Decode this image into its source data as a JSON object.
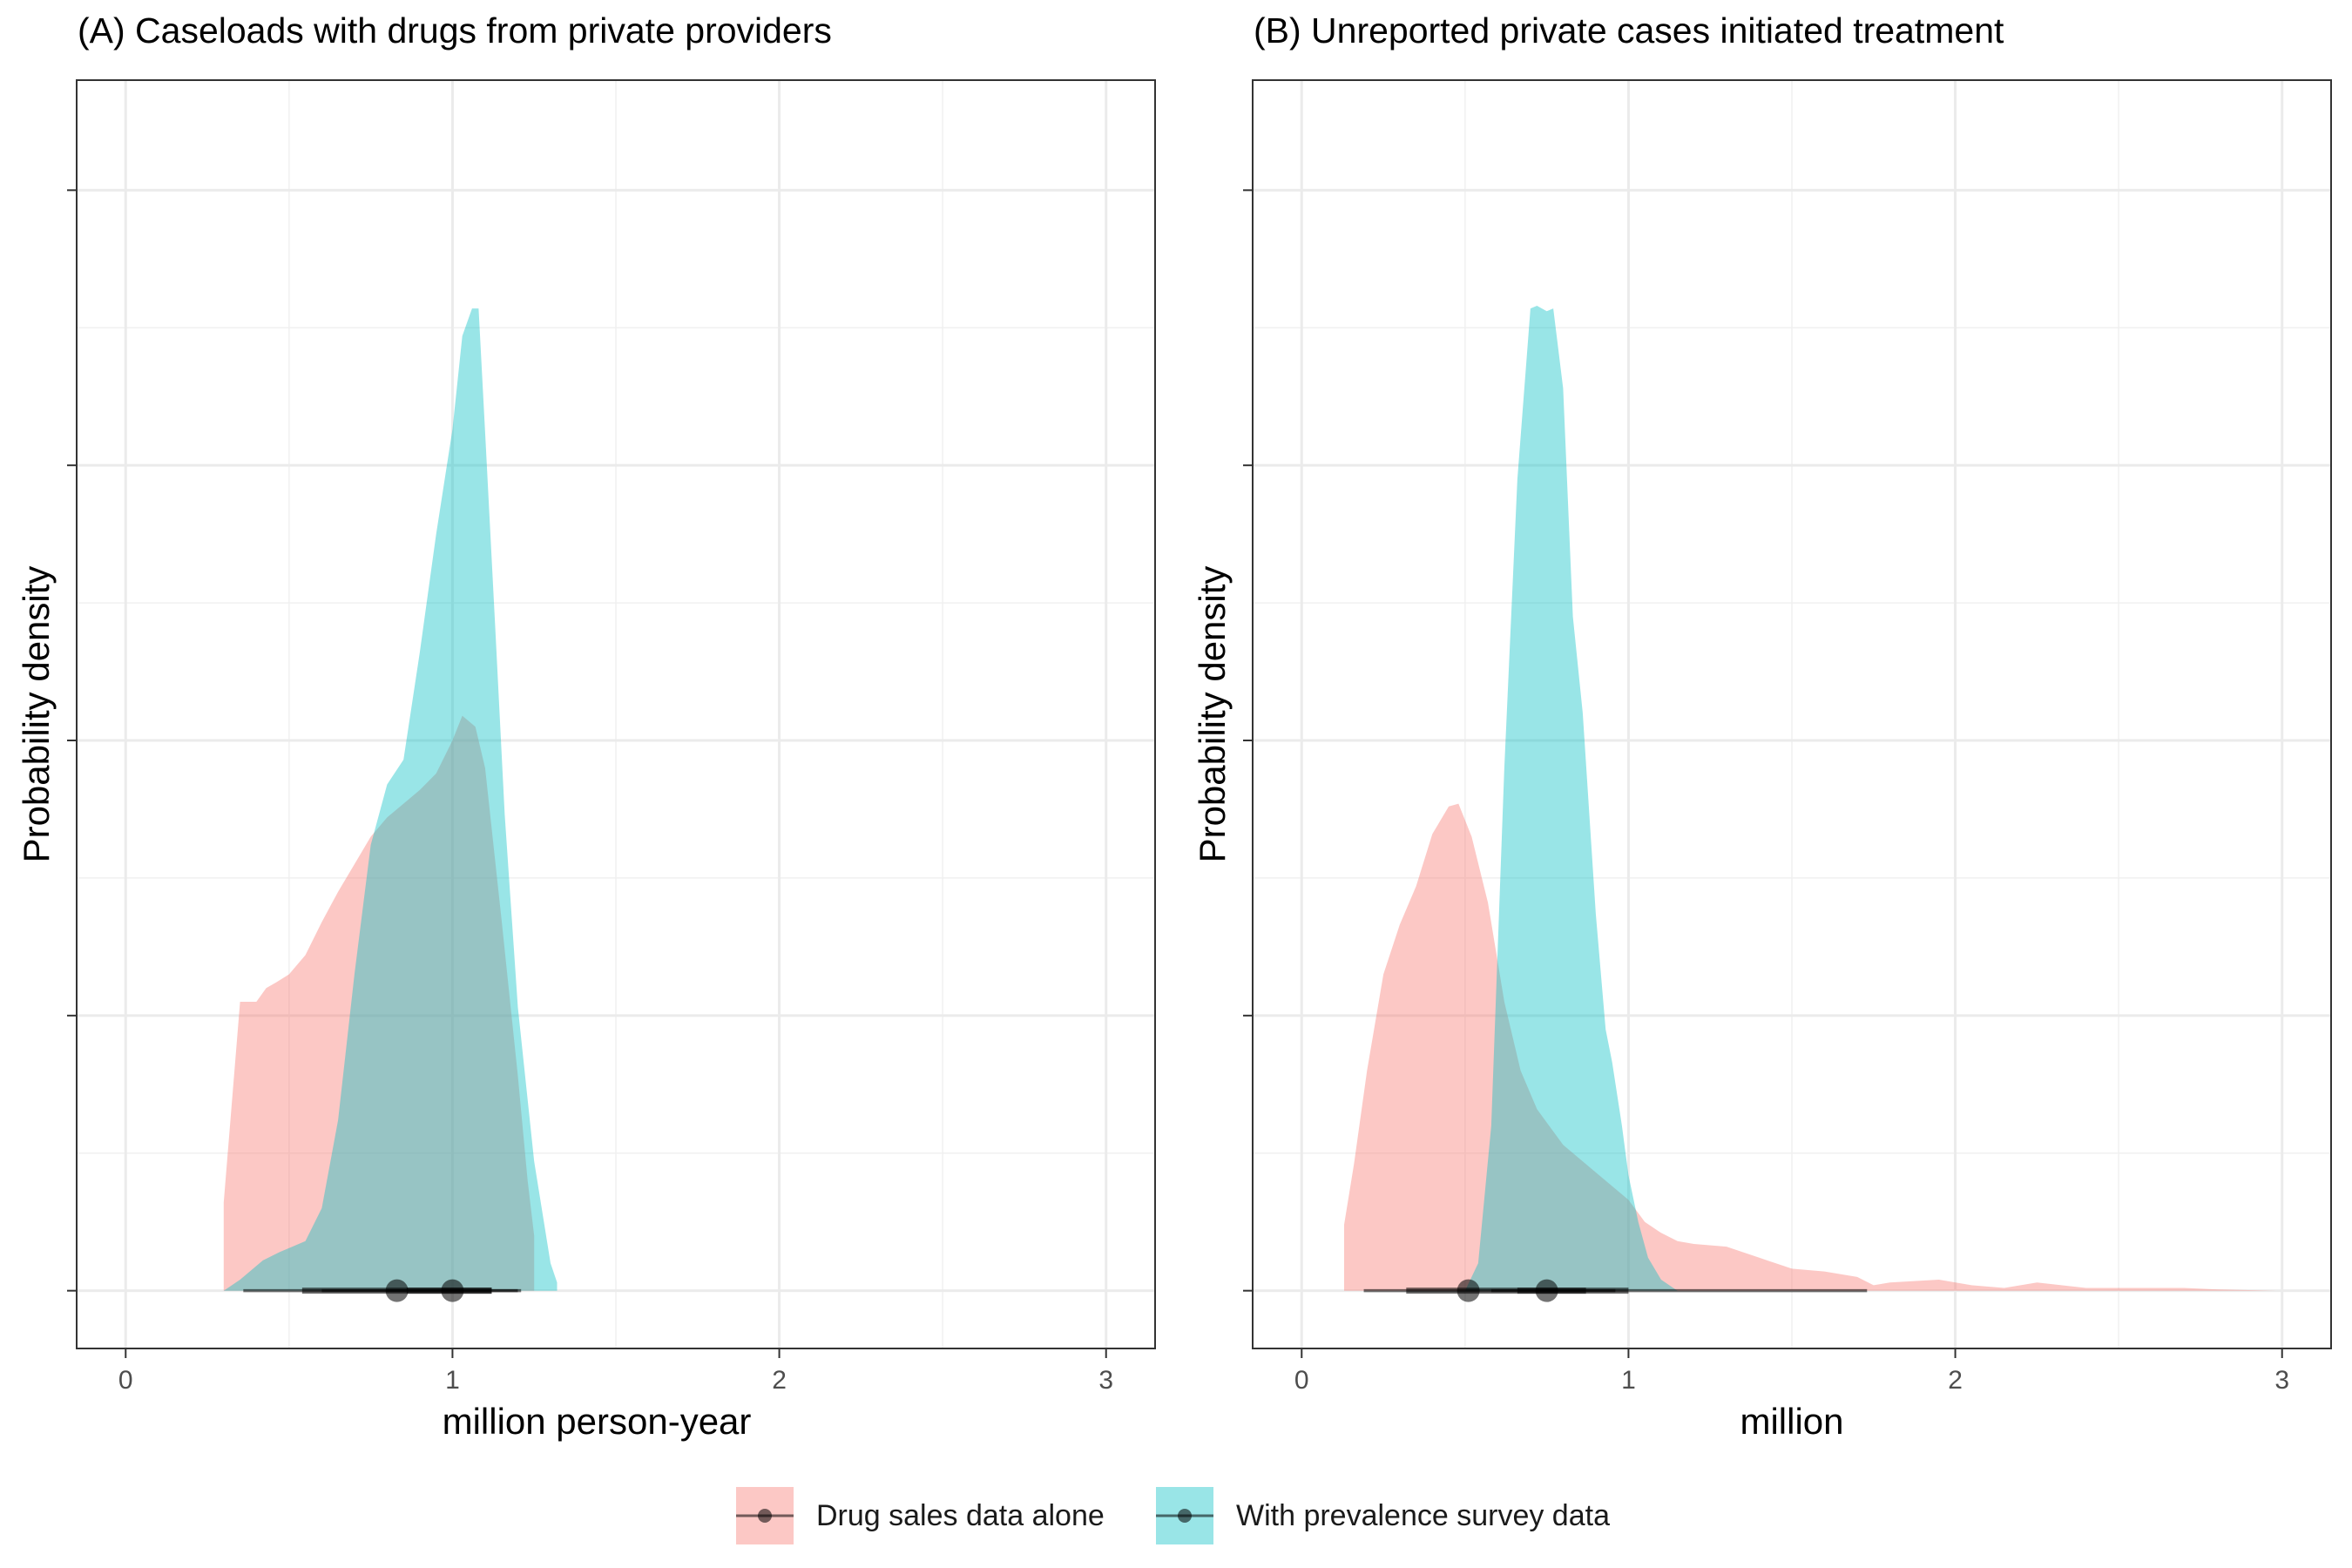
{
  "legend": {
    "items": [
      {
        "label": "Drug sales data alone",
        "color": "#F8766D"
      },
      {
        "label": "With prevalence survey data",
        "color": "#00BFC4"
      }
    ]
  },
  "chart_data": [
    {
      "type": "area",
      "panel": "A",
      "title": "(A) Caseloads with drugs from private providers",
      "xlabel": "million person-year",
      "ylabel": "Probability density",
      "xlim": [
        -0.15,
        3.15
      ],
      "ylim": [
        -0.21,
        4.4
      ],
      "x_ticks": [
        0,
        1,
        2,
        3
      ],
      "y_ticks_labeled": false,
      "grid": true,
      "series": [
        {
          "name": "Drug sales data alone",
          "color": "#F8766D",
          "points": [
            [
              0.3,
              0.32
            ],
            [
              0.35,
              1.05
            ],
            [
              0.4,
              1.05
            ],
            [
              0.43,
              1.1
            ],
            [
              0.46,
              1.12
            ],
            [
              0.5,
              1.15
            ],
            [
              0.55,
              1.22
            ],
            [
              0.6,
              1.34
            ],
            [
              0.65,
              1.45
            ],
            [
              0.7,
              1.55
            ],
            [
              0.75,
              1.65
            ],
            [
              0.8,
              1.72
            ],
            [
              0.85,
              1.77
            ],
            [
              0.9,
              1.82
            ],
            [
              0.95,
              1.88
            ],
            [
              1.0,
              2.0
            ],
            [
              1.03,
              2.09
            ],
            [
              1.07,
              2.05
            ],
            [
              1.1,
              1.9
            ],
            [
              1.15,
              1.35
            ],
            [
              1.2,
              0.78
            ],
            [
              1.23,
              0.4
            ],
            [
              1.25,
              0.2
            ]
          ],
          "median": 0.83,
          "interval_66": [
            0.54,
            1.12
          ],
          "interval_95": [
            0.36,
            1.21
          ]
        },
        {
          "name": "With prevalence survey data",
          "color": "#00BFC4",
          "points": [
            [
              0.3,
              0.0
            ],
            [
              0.35,
              0.04
            ],
            [
              0.42,
              0.11
            ],
            [
              0.47,
              0.14
            ],
            [
              0.55,
              0.18
            ],
            [
              0.6,
              0.3
            ],
            [
              0.65,
              0.62
            ],
            [
              0.7,
              1.15
            ],
            [
              0.75,
              1.62
            ],
            [
              0.8,
              1.84
            ],
            [
              0.85,
              1.93
            ],
            [
              0.9,
              2.32
            ],
            [
              0.95,
              2.75
            ],
            [
              1.0,
              3.13
            ],
            [
              1.03,
              3.47
            ],
            [
              1.06,
              3.57
            ],
            [
              1.08,
              3.57
            ],
            [
              1.1,
              3.12
            ],
            [
              1.13,
              2.43
            ],
            [
              1.16,
              1.73
            ],
            [
              1.2,
              1.03
            ],
            [
              1.25,
              0.47
            ],
            [
              1.3,
              0.1
            ],
            [
              1.32,
              0.03
            ]
          ],
          "median": 1.0,
          "interval_66": [
            0.86,
            1.12
          ],
          "interval_95": [
            0.6,
            1.2
          ]
        }
      ]
    },
    {
      "type": "area",
      "panel": "B",
      "title": "(B) Unreported private cases initiated treatment",
      "xlabel": "million",
      "ylabel": "Probability density",
      "xlim": [
        -0.15,
        3.15
      ],
      "ylim": [
        -0.21,
        4.4
      ],
      "x_ticks": [
        0,
        1,
        2,
        3
      ],
      "y_ticks_labeled": false,
      "grid": true,
      "series": [
        {
          "name": "Drug sales data alone",
          "color": "#F8766D",
          "points": [
            [
              0.13,
              0.24
            ],
            [
              0.16,
              0.46
            ],
            [
              0.2,
              0.8
            ],
            [
              0.25,
              1.15
            ],
            [
              0.3,
              1.33
            ],
            [
              0.35,
              1.47
            ],
            [
              0.4,
              1.66
            ],
            [
              0.45,
              1.76
            ],
            [
              0.48,
              1.77
            ],
            [
              0.52,
              1.65
            ],
            [
              0.57,
              1.41
            ],
            [
              0.62,
              1.05
            ],
            [
              0.67,
              0.8
            ],
            [
              0.72,
              0.66
            ],
            [
              0.8,
              0.53
            ],
            [
              0.9,
              0.43
            ],
            [
              1.0,
              0.33
            ],
            [
              1.05,
              0.25
            ],
            [
              1.1,
              0.21
            ],
            [
              1.15,
              0.18
            ],
            [
              1.2,
              0.17
            ],
            [
              1.3,
              0.16
            ],
            [
              1.4,
              0.12
            ],
            [
              1.5,
              0.08
            ],
            [
              1.6,
              0.07
            ],
            [
              1.7,
              0.05
            ],
            [
              1.75,
              0.02
            ],
            [
              1.8,
              0.03
            ],
            [
              1.95,
              0.04
            ],
            [
              2.05,
              0.02
            ],
            [
              2.15,
              0.01
            ],
            [
              2.25,
              0.03
            ],
            [
              2.4,
              0.01
            ],
            [
              2.5,
              0.01
            ],
            [
              2.7,
              0.01
            ],
            [
              2.8,
              0.005
            ],
            [
              2.98,
              0.0
            ]
          ],
          "median": 0.51,
          "interval_66": [
            0.32,
            1.0
          ],
          "interval_95": [
            0.19,
            1.73
          ]
        },
        {
          "name": "With prevalence survey data",
          "color": "#00BFC4",
          "points": [
            [
              0.5,
              0.0
            ],
            [
              0.54,
              0.1
            ],
            [
              0.58,
              0.6
            ],
            [
              0.62,
              1.9
            ],
            [
              0.66,
              2.95
            ],
            [
              0.7,
              3.57
            ],
            [
              0.72,
              3.58
            ],
            [
              0.75,
              3.56
            ],
            [
              0.77,
              3.57
            ],
            [
              0.8,
              3.28
            ],
            [
              0.83,
              2.45
            ],
            [
              0.86,
              2.1
            ],
            [
              0.9,
              1.37
            ],
            [
              0.93,
              0.95
            ],
            [
              0.95,
              0.83
            ],
            [
              0.98,
              0.6
            ],
            [
              1.0,
              0.42
            ],
            [
              1.03,
              0.25
            ],
            [
              1.06,
              0.12
            ],
            [
              1.1,
              0.04
            ],
            [
              1.15,
              0.0
            ]
          ],
          "median": 0.75,
          "interval_66": [
            0.66,
            0.87
          ],
          "interval_95": [
            0.58,
            0.96
          ]
        }
      ]
    }
  ]
}
